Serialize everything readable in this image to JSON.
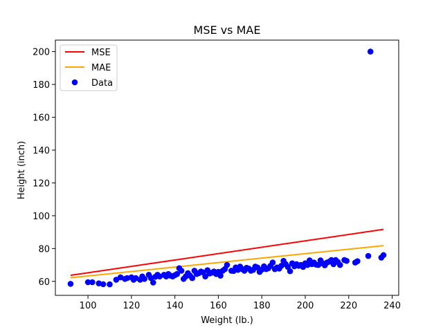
{
  "chart_data": {
    "type": "scatter",
    "title": "MSE vs MAE",
    "xlabel": "Weight (lb.)",
    "ylabel": "Height (inch)",
    "xlim": [
      85,
      243
    ],
    "ylim": [
      51.5,
      207
    ],
    "xticks": [
      100,
      120,
      140,
      160,
      180,
      200,
      220,
      240
    ],
    "yticks": [
      60,
      80,
      100,
      120,
      140,
      160,
      180,
      200
    ],
    "grid": false,
    "legend_placement": "upper-left",
    "lines": [
      {
        "name": "MSE",
        "color": "#ff0000",
        "x": [
          92,
          236
        ],
        "y": [
          63.7,
          91.7
        ]
      },
      {
        "name": "MAE",
        "color": "#ffa500",
        "x": [
          92,
          236
        ],
        "y": [
          62.2,
          81.8
        ]
      }
    ],
    "scatter": {
      "name": "Data",
      "color": "#0000ff",
      "points": [
        [
          92,
          58.5
        ],
        [
          100,
          59.5
        ],
        [
          102,
          59.5
        ],
        [
          105,
          58.8
        ],
        [
          107,
          58.3
        ],
        [
          110,
          58.2
        ],
        [
          113,
          61
        ],
        [
          115,
          62.5
        ],
        [
          117,
          61.5
        ],
        [
          118,
          62
        ],
        [
          120,
          62.5
        ],
        [
          121,
          61
        ],
        [
          122,
          62
        ],
        [
          124,
          61
        ],
        [
          125,
          63
        ],
        [
          126,
          61.5
        ],
        [
          128,
          64
        ],
        [
          129,
          62
        ],
        [
          130,
          59.3
        ],
        [
          131,
          62.8
        ],
        [
          132,
          64
        ],
        [
          133,
          63
        ],
        [
          135,
          64
        ],
        [
          136,
          63
        ],
        [
          137,
          64.5
        ],
        [
          138,
          63.5
        ],
        [
          139,
          63
        ],
        [
          140,
          63.8
        ],
        [
          141,
          64.5
        ],
        [
          142,
          68
        ],
        [
          143,
          66.5
        ],
        [
          144,
          61.5
        ],
        [
          145,
          63
        ],
        [
          146,
          65
        ],
        [
          147,
          63.5
        ],
        [
          148,
          62
        ],
        [
          149,
          66.5
        ],
        [
          150,
          64.5
        ],
        [
          151,
          65
        ],
        [
          152,
          66
        ],
        [
          153,
          65.5
        ],
        [
          154,
          63
        ],
        [
          155,
          66.8
        ],
        [
          156,
          64.8
        ],
        [
          157,
          65.3
        ],
        [
          158,
          66
        ],
        [
          159,
          64.5
        ],
        [
          160,
          65.8
        ],
        [
          161,
          63.5
        ],
        [
          162,
          66.5
        ],
        [
          163,
          67.5
        ],
        [
          164,
          70
        ],
        [
          166,
          66.5
        ],
        [
          167,
          66.3
        ],
        [
          168,
          68.5
        ],
        [
          169,
          67
        ],
        [
          170,
          69
        ],
        [
          171,
          67.5
        ],
        [
          172,
          66.5
        ],
        [
          173,
          68.3
        ],
        [
          174,
          67.8
        ],
        [
          175,
          66.5
        ],
        [
          176,
          67
        ],
        [
          177,
          69
        ],
        [
          178,
          68.5
        ],
        [
          179,
          65.8
        ],
        [
          180,
          67.2
        ],
        [
          181,
          69.2
        ],
        [
          182,
          67.5
        ],
        [
          183,
          68
        ],
        [
          184,
          69.5
        ],
        [
          185,
          71.5
        ],
        [
          186,
          67.5
        ],
        [
          187,
          68.5
        ],
        [
          188,
          67.8
        ],
        [
          189,
          69.5
        ],
        [
          190,
          72.5
        ],
        [
          191,
          70.5
        ],
        [
          192,
          68.8
        ],
        [
          193,
          66.2
        ],
        [
          194,
          71
        ],
        [
          195,
          69.2
        ],
        [
          196,
          70.5
        ],
        [
          197,
          69.5
        ],
        [
          198,
          70
        ],
        [
          199,
          68.8
        ],
        [
          200,
          71
        ],
        [
          201,
          70
        ],
        [
          202,
          72.8
        ],
        [
          203,
          70.5
        ],
        [
          204,
          71.5
        ],
        [
          205,
          70.2
        ],
        [
          206,
          70
        ],
        [
          207,
          72.8
        ],
        [
          208,
          71
        ],
        [
          209,
          69.8
        ],
        [
          210,
          71.5
        ],
        [
          211,
          72
        ],
        [
          212,
          73
        ],
        [
          213,
          70.5
        ],
        [
          214,
          73
        ],
        [
          215,
          71.8
        ],
        [
          216,
          70
        ],
        [
          218,
          73
        ],
        [
          219,
          72.5
        ],
        [
          223,
          71.5
        ],
        [
          224,
          72.3
        ],
        [
          229,
          75.5
        ],
        [
          230,
          200
        ],
        [
          235,
          74.5
        ],
        [
          236,
          76
        ]
      ]
    }
  }
}
